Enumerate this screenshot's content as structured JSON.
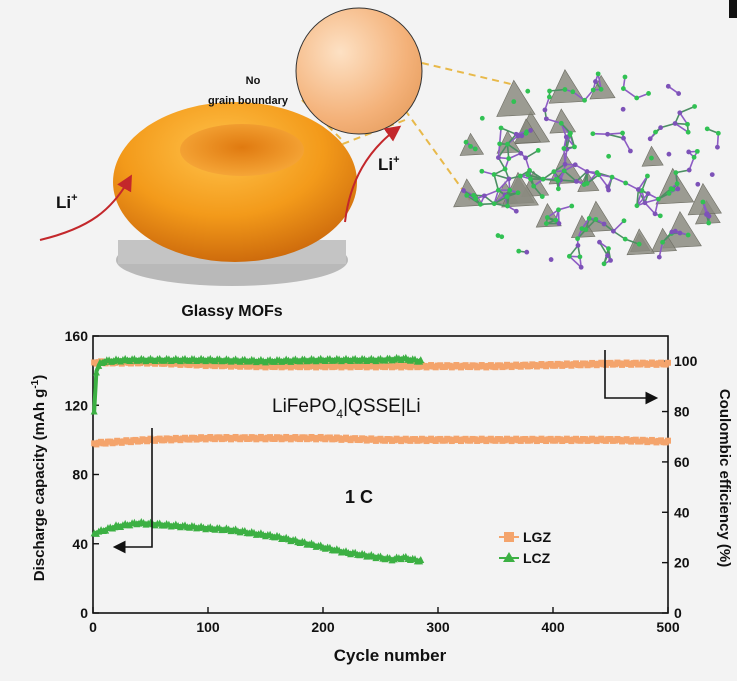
{
  "illustration": {
    "particle_label": "Glassy MOFs",
    "callout_line1": "No",
    "callout_line2": "grain boundary",
    "ion_left": "Li",
    "ion_right": "Li",
    "ion_charge": "+"
  },
  "chart_data": {
    "type": "scatter",
    "title_parts": [
      "LiFePO",
      "4",
      "|QSSE|Li"
    ],
    "rate_label": "1 C",
    "xlabel": "Cycle number",
    "ylabel_left_parts": [
      "Discharge capacity (mAh g",
      "-1",
      ")"
    ],
    "ylabel_right": "Coulombic efficiency (%)",
    "xlim": [
      0,
      500
    ],
    "ylim_left": [
      0,
      160
    ],
    "ylim_right": [
      0,
      110
    ],
    "x_ticks": [
      0,
      100,
      200,
      300,
      400,
      500
    ],
    "y_left_ticks": [
      0,
      40,
      80,
      120,
      160
    ],
    "y_right_ticks": [
      0,
      20,
      40,
      60,
      80,
      100
    ],
    "grid": false,
    "legend_position": "lower-right",
    "series": [
      {
        "name": "LGZ",
        "marker": "square",
        "color": "#f4a46c",
        "capacity": {
          "x": [
            1,
            50,
            100,
            150,
            200,
            250,
            300,
            350,
            400,
            450,
            500
          ],
          "y": [
            98,
            100,
            101,
            101,
            101,
            100,
            100,
            100,
            100,
            100,
            99
          ]
        },
        "efficiency": {
          "x": [
            1,
            50,
            100,
            150,
            200,
            250,
            300,
            350,
            400,
            450,
            500
          ],
          "y": [
            99.5,
            99.5,
            98.5,
            98.0,
            98.0,
            98.0,
            98.0,
            98.0,
            98.5,
            99.0,
            99.0
          ]
        }
      },
      {
        "name": "LCZ",
        "marker": "triangle",
        "color": "#3cb043",
        "capacity": {
          "x": [
            1,
            20,
            40,
            60,
            80,
            100,
            120,
            140,
            160,
            180,
            200,
            220,
            240,
            260,
            270,
            285
          ],
          "y": [
            46,
            50,
            52,
            51,
            50,
            49,
            48,
            46,
            44,
            41,
            38,
            35,
            33,
            31,
            32,
            30
          ]
        },
        "efficiency": {
          "x": [
            1,
            3,
            6,
            10,
            30,
            60,
            100,
            150,
            200,
            250,
            270,
            285
          ],
          "y": [
            80,
            96,
            99,
            100,
            100.5,
            100.5,
            100.5,
            100,
            100.5,
            100.5,
            101,
            100
          ]
        }
      }
    ]
  }
}
